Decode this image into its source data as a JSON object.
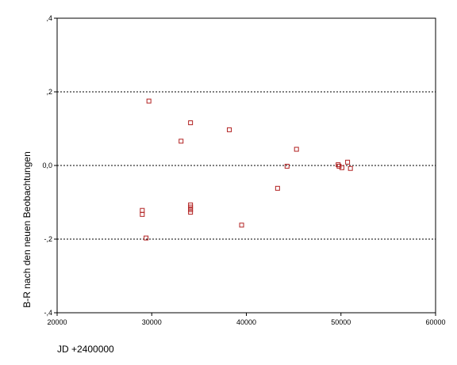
{
  "chart_data": {
    "type": "scatter",
    "title": "",
    "xlabel": "JD +2400000",
    "ylabel": "B-R nach den neuen Beobachtungen",
    "xlim": [
      20000,
      60000
    ],
    "ylim": [
      -0.4,
      0.4
    ],
    "x_ticks": [
      20000,
      30000,
      40000,
      50000,
      60000
    ],
    "x_tick_labels": [
      "20000",
      "30000",
      "40000",
      "50000",
      "60000"
    ],
    "y_ticks": [
      0.4,
      0.2,
      0.0,
      -0.2,
      -0.4
    ],
    "y_tick_labels": [
      ",4",
      ",2",
      "0,0",
      "-,2",
      "-,4"
    ],
    "reference_lines": [
      0.2,
      0.0,
      -0.2
    ],
    "grid": false,
    "marker": "hollow-square",
    "marker_color": "#b22222",
    "points": [
      {
        "x": 29000,
        "y": -0.122
      },
      {
        "x": 29000,
        "y": -0.133
      },
      {
        "x": 29400,
        "y": -0.197
      },
      {
        "x": 29700,
        "y": 0.175
      },
      {
        "x": 33100,
        "y": 0.066
      },
      {
        "x": 34100,
        "y": 0.116
      },
      {
        "x": 34100,
        "y": -0.107
      },
      {
        "x": 34100,
        "y": -0.113
      },
      {
        "x": 34100,
        "y": -0.12
      },
      {
        "x": 34100,
        "y": -0.127
      },
      {
        "x": 38200,
        "y": 0.097
      },
      {
        "x": 39500,
        "y": -0.162
      },
      {
        "x": 43300,
        "y": -0.062
      },
      {
        "x": 44300,
        "y": -0.002
      },
      {
        "x": 45300,
        "y": 0.044
      },
      {
        "x": 49700,
        "y": 0.002
      },
      {
        "x": 49800,
        "y": -0.002
      },
      {
        "x": 50100,
        "y": -0.006
      },
      {
        "x": 50700,
        "y": 0.009
      },
      {
        "x": 51000,
        "y": -0.008
      }
    ]
  }
}
